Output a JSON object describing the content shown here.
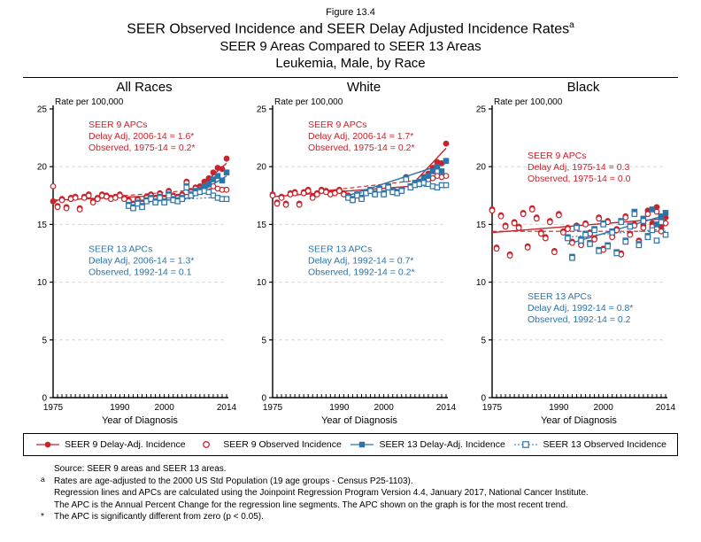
{
  "figure_label": "Figure 13.4",
  "title": {
    "line1": "SEER Observed Incidence and SEER Delay Adjusted Incidence Rates",
    "superscript": "a",
    "line2": "SEER 9 Areas Compared to SEER 13 Areas",
    "line3": "Leukemia, Male, by Race"
  },
  "colors": {
    "seer9": "#c9232b",
    "seer13": "#2d74a9",
    "grid": "#d8d8d8",
    "axis": "#000000"
  },
  "chart_data": {
    "type": "scatter",
    "x_label": "Year of Diagnosis",
    "y_label": "Rate per 100,000",
    "x_range": [
      1975,
      2014
    ],
    "y_range": [
      0,
      25
    ],
    "y_ticks": [
      0,
      5,
      10,
      15,
      20,
      25
    ],
    "x_tick_labels": [
      "1975",
      "1990",
      "2000",
      "2014"
    ],
    "grid": "dashed horizontal gridlines at 5,10,15,20",
    "legend_position": "bottom",
    "panels": [
      {
        "title": "All Races",
        "annotations": [
          {
            "group": "seer9",
            "y": 23.4,
            "lines": [
              "SEER 9 APCs",
              "Delay Adj, 2006-14 = 1.6*",
              "Observed, 1975-14 = 0.2*"
            ]
          },
          {
            "group": "seer13",
            "y": 12.6,
            "lines": [
              "SEER 13 APCs",
              "Delay Adj, 2006-14 = 1.3*",
              "Observed, 1992-14 = 0.1"
            ]
          }
        ],
        "series": [
          {
            "name": "SEER 9 Delay-Adj. Incidence",
            "color_key": "seer9",
            "marker": "circle",
            "fill": "filled",
            "start_year": 1975,
            "values": [
              17.0,
              16.6,
              17.2,
              16.5,
              17.3,
              17.4,
              16.4,
              17.4,
              17.6,
              17.0,
              17.3,
              17.6,
              17.5,
              17.3,
              17.4,
              17.6,
              17.3,
              17.1,
              16.8,
              17.2,
              16.9,
              17.4,
              17.6,
              17.3,
              17.7,
              17.3,
              17.9,
              17.5,
              17.4,
              17.6,
              18.7,
              17.9,
              18.2,
              18.3,
              18.7,
              19.0,
              19.5,
              19.9,
              19.8,
              20.7
            ]
          },
          {
            "name": "SEER 9 Observed Incidence",
            "color_key": "seer9",
            "marker": "circle",
            "fill": "open",
            "start_year": 1975,
            "values": [
              18.3,
              16.5,
              17.1,
              16.4,
              17.2,
              17.3,
              16.3,
              17.3,
              17.5,
              16.9,
              17.2,
              17.5,
              17.4,
              17.2,
              17.3,
              17.5,
              17.2,
              17.0,
              16.7,
              17.1,
              16.8,
              17.3,
              17.5,
              17.2,
              17.6,
              17.2,
              17.8,
              17.4,
              17.3,
              17.5,
              18.6,
              17.8,
              18.1,
              18.1,
              18.4,
              18.5,
              18.3,
              18.1,
              18.0,
              18.0
            ]
          },
          {
            "name": "SEER 13 Delay-Adj. Incidence",
            "color_key": "seer13",
            "marker": "square",
            "fill": "filled",
            "start_year": 1992,
            "values": [
              16.7,
              16.5,
              16.9,
              16.6,
              17.1,
              17.3,
              17.0,
              17.4,
              17.0,
              17.6,
              17.2,
              17.1,
              17.3,
              18.3,
              17.6,
              17.9,
              18.0,
              18.3,
              18.5,
              18.9,
              19.2,
              18.8,
              19.5
            ]
          },
          {
            "name": "SEER 13 Observed Incidence",
            "color_key": "seer13",
            "marker": "square",
            "fill": "open",
            "start_year": 1992,
            "values": [
              16.6,
              16.4,
              16.8,
              16.5,
              17.0,
              17.2,
              16.9,
              17.3,
              16.9,
              17.5,
              17.1,
              17.0,
              17.2,
              18.2,
              17.5,
              17.7,
              17.8,
              17.9,
              17.8,
              17.5,
              17.3,
              17.2,
              17.2
            ]
          }
        ],
        "trends": [
          {
            "color_key": "seer9",
            "style": "solid",
            "points": [
              [
                1975,
                17.1
              ],
              [
                2006,
                17.6
              ],
              [
                2014,
                20.3
              ]
            ]
          },
          {
            "color_key": "seer9",
            "style": "dashed",
            "points": [
              [
                1975,
                17.0
              ],
              [
                2014,
                18.2
              ]
            ]
          },
          {
            "color_key": "seer13",
            "style": "solid",
            "points": [
              [
                1992,
                16.8
              ],
              [
                2006,
                17.3
              ],
              [
                2014,
                19.2
              ]
            ]
          },
          {
            "color_key": "seer13",
            "style": "dotted",
            "points": [
              [
                1992,
                16.9
              ],
              [
                2014,
                17.4
              ]
            ]
          }
        ]
      },
      {
        "title": "White",
        "annotations": [
          {
            "group": "seer9",
            "y": 23.4,
            "lines": [
              "SEER 9 APCs",
              "Delay Adj, 2006-14 = 1.7*",
              "Observed, 1975-14 = 0.2*"
            ]
          },
          {
            "group": "seer13",
            "y": 12.6,
            "lines": [
              "SEER 13 APCs",
              "Delay Adj, 1992-14 = 0.7*",
              "Observed, 1992-14 = 0.2*"
            ]
          }
        ],
        "series": [
          {
            "name": "SEER 9 Delay-Adj. Incidence",
            "color_key": "seer9",
            "marker": "circle",
            "fill": "filled",
            "start_year": 1975,
            "values": [
              17.6,
              16.9,
              17.4,
              16.8,
              17.7,
              17.8,
              16.8,
              17.8,
              18.0,
              17.4,
              17.7,
              18.0,
              17.9,
              17.7,
              17.8,
              18.0,
              17.7,
              17.5,
              17.2,
              17.6,
              17.3,
              17.8,
              18.0,
              17.7,
              18.1,
              17.7,
              18.3,
              17.9,
              17.8,
              18.0,
              19.1,
              18.3,
              18.6,
              18.7,
              19.1,
              19.4,
              19.9,
              20.4,
              20.3,
              22.0
            ]
          },
          {
            "name": "SEER 9 Observed Incidence",
            "color_key": "seer9",
            "marker": "circle",
            "fill": "open",
            "start_year": 1975,
            "values": [
              17.5,
              16.8,
              17.3,
              16.7,
              17.6,
              17.7,
              16.7,
              17.7,
              17.9,
              17.3,
              17.6,
              17.9,
              17.8,
              17.6,
              17.7,
              17.9,
              17.6,
              17.4,
              17.1,
              17.5,
              17.2,
              17.7,
              17.9,
              17.6,
              18.0,
              17.6,
              18.2,
              17.8,
              17.7,
              17.9,
              19.0,
              18.2,
              18.5,
              18.5,
              18.8,
              18.9,
              19.0,
              19.2,
              19.1,
              19.2
            ]
          },
          {
            "name": "SEER 13 Delay-Adj. Incidence",
            "color_key": "seer13",
            "marker": "square",
            "fill": "filled",
            "start_year": 1992,
            "values": [
              17.4,
              17.2,
              17.6,
              17.3,
              17.8,
              18.0,
              17.7,
              18.1,
              17.7,
              18.3,
              17.9,
              17.8,
              18.0,
              19.0,
              18.3,
              18.6,
              18.7,
              19.0,
              19.2,
              19.6,
              20.0,
              19.6,
              20.5
            ]
          },
          {
            "name": "SEER 13 Observed Incidence",
            "color_key": "seer13",
            "marker": "square",
            "fill": "open",
            "start_year": 1992,
            "values": [
              17.3,
              17.1,
              17.5,
              17.2,
              17.7,
              17.9,
              17.6,
              18.0,
              17.6,
              18.2,
              17.8,
              17.7,
              17.9,
              18.9,
              18.2,
              18.4,
              18.5,
              18.6,
              18.5,
              18.3,
              18.2,
              18.4,
              18.4
            ]
          }
        ],
        "trends": [
          {
            "color_key": "seer9",
            "style": "solid",
            "points": [
              [
                1975,
                17.4
              ],
              [
                2006,
                18.3
              ],
              [
                2014,
                21.6
              ]
            ]
          },
          {
            "color_key": "seer9",
            "style": "dashed",
            "points": [
              [
                1975,
                17.4
              ],
              [
                2014,
                19.1
              ]
            ]
          },
          {
            "color_key": "seer13",
            "style": "solid",
            "points": [
              [
                1992,
                17.5
              ],
              [
                2014,
                20.3
              ]
            ]
          },
          {
            "color_key": "seer13",
            "style": "dotted",
            "points": [
              [
                1992,
                17.6
              ],
              [
                2014,
                18.5
              ]
            ]
          }
        ]
      },
      {
        "title": "Black",
        "annotations": [
          {
            "group": "seer9",
            "y": 20.7,
            "lines": [
              "SEER 9 APCs",
              "Delay Adj, 1975-14 = 0.3",
              "Observed, 1975-14 = 0.0"
            ]
          },
          {
            "group": "seer13",
            "y": 8.5,
            "lines": [
              "SEER 13 APCs",
              "Delay Adj, 1992-14 = 0.8*",
              "Observed, 1992-14 = 0.2"
            ]
          }
        ],
        "series": [
          {
            "name": "SEER 9 Delay-Adj. Incidence",
            "color_key": "seer9",
            "marker": "circle",
            "fill": "filled",
            "start_year": 1975,
            "values": [
              16.3,
              13.0,
              15.8,
              14.9,
              12.4,
              15.2,
              14.8,
              16.0,
              13.1,
              16.4,
              15.6,
              14.3,
              13.9,
              15.3,
              12.7,
              15.9,
              14.4,
              14.7,
              13.5,
              14.9,
              13.3,
              15.1,
              14.3,
              13.8,
              15.6,
              12.9,
              15.3,
              14.0,
              14.6,
              12.5,
              15.7,
              14.2,
              15.0,
              13.6,
              14.9,
              16.2,
              15.1,
              16.5,
              14.8,
              15.6
            ]
          },
          {
            "name": "SEER 9 Observed Incidence",
            "color_key": "seer9",
            "marker": "circle",
            "fill": "open",
            "start_year": 1975,
            "values": [
              16.2,
              12.9,
              15.7,
              14.8,
              12.3,
              15.1,
              14.7,
              15.9,
              13.0,
              16.3,
              15.5,
              14.2,
              13.8,
              15.2,
              12.6,
              15.8,
              14.3,
              14.6,
              13.4,
              14.8,
              13.2,
              15.0,
              14.2,
              13.7,
              15.5,
              12.8,
              15.2,
              13.9,
              14.5,
              12.4,
              15.6,
              14.1,
              14.9,
              13.5,
              14.7,
              15.9,
              14.8,
              16.1,
              14.4,
              15.1
            ]
          },
          {
            "name": "SEER 13 Delay-Adj. Incidence",
            "color_key": "seer13",
            "marker": "square",
            "fill": "filled",
            "start_year": 1992,
            "values": [
              13.9,
              12.2,
              14.8,
              13.7,
              14.2,
              13.4,
              14.6,
              12.8,
              15.1,
              13.2,
              14.4,
              12.6,
              15.3,
              13.6,
              14.9,
              16.1,
              13.3,
              15.5,
              14.0,
              16.3,
              15.0,
              15.7,
              16.0
            ]
          },
          {
            "name": "SEER 13 Observed Incidence",
            "color_key": "seer13",
            "marker": "square",
            "fill": "open",
            "start_year": 1992,
            "values": [
              13.8,
              12.1,
              14.7,
              13.6,
              14.1,
              13.3,
              14.5,
              12.7,
              15.0,
              13.1,
              14.3,
              12.5,
              15.2,
              13.5,
              14.8,
              15.9,
              13.2,
              15.3,
              13.9,
              14.5,
              13.6,
              15.2,
              14.1
            ]
          }
        ],
        "trends": [
          {
            "color_key": "seer9",
            "style": "solid",
            "points": [
              [
                1975,
                14.3
              ],
              [
                2014,
                15.5
              ]
            ]
          },
          {
            "color_key": "seer9",
            "style": "dashed",
            "points": [
              [
                1975,
                14.4
              ],
              [
                2014,
                14.4
              ]
            ]
          },
          {
            "color_key": "seer13",
            "style": "solid",
            "points": [
              [
                1992,
                13.3
              ],
              [
                2014,
                15.8
              ]
            ]
          },
          {
            "color_key": "seer13",
            "style": "dotted",
            "points": [
              [
                1992,
                13.9
              ],
              [
                2014,
                14.6
              ]
            ]
          }
        ]
      }
    ]
  },
  "legend": [
    {
      "label": "SEER 9 Delay-Adj. Incidence",
      "marker": "line-filled-circle",
      "color_key": "seer9"
    },
    {
      "label": "SEER 9 Observed Incidence",
      "marker": "open-circle",
      "color_key": "seer9"
    },
    {
      "label": "SEER 13 Delay-Adj. Incidence",
      "marker": "line-filled-square",
      "color_key": "seer13"
    },
    {
      "label": "SEER 13 Observed Incidence",
      "marker": "dotted-open-square",
      "color_key": "seer13"
    }
  ],
  "footnotes": [
    {
      "marker": "",
      "superscript": false,
      "text": "Source: SEER 9 areas and SEER 13 areas."
    },
    {
      "marker": "a",
      "superscript": true,
      "text": "Rates are age-adjusted to the 2000 US Std Population (19 age groups - Census P25-1103)."
    },
    {
      "marker": "",
      "superscript": false,
      "text": "Regression lines and APCs are calculated using the Joinpoint Regression Program Version 4.4, January 2017, National Cancer Institute."
    },
    {
      "marker": "",
      "superscript": false,
      "text": "The APC is the Annual Percent Change for the regression line segments. The APC shown on the graph is for the most recent trend."
    },
    {
      "marker": "*",
      "superscript": false,
      "text": "The APC is significantly different from zero (p < 0.05)."
    }
  ]
}
